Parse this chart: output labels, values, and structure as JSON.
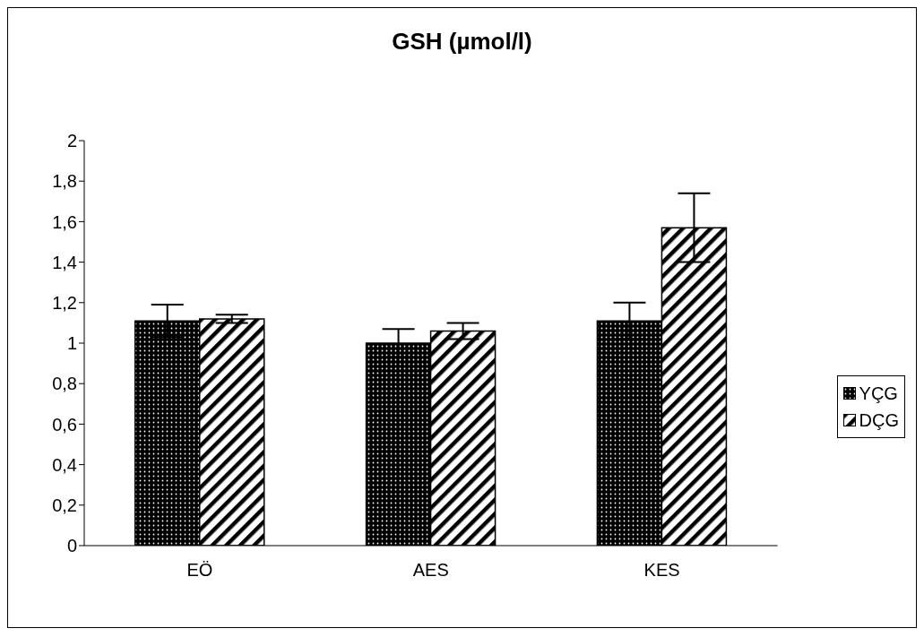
{
  "chart_data": {
    "type": "bar",
    "title": "GSH (µmol/l)",
    "categories": [
      "EÖ",
      "AES",
      "KES"
    ],
    "series": [
      {
        "name": "YÇG",
        "color": "#000000",
        "values": [
          1.11,
          1.0,
          1.11
        ],
        "errors": [
          0.08,
          0.07,
          0.09
        ]
      },
      {
        "name": "DÇG",
        "color": "#000000",
        "values": [
          1.12,
          1.06,
          1.57
        ],
        "errors": [
          0.02,
          0.04,
          0.17
        ]
      }
    ],
    "ylim": [
      0,
      2
    ],
    "yticks": [
      0,
      {
        "value": 0.2,
        "label": "0,2"
      },
      {
        "value": 0.4,
        "label": "0,4"
      },
      {
        "value": 0.6,
        "label": "0,6"
      },
      {
        "value": 0.8,
        "label": "0,8"
      },
      1,
      {
        "value": 1.2,
        "label": "1,2"
      },
      {
        "value": 1.4,
        "label": "1,4"
      },
      {
        "value": 1.6,
        "label": "1,6"
      },
      {
        "value": 1.8,
        "label": "1,8"
      },
      2
    ],
    "grid": false,
    "legend": "right"
  }
}
